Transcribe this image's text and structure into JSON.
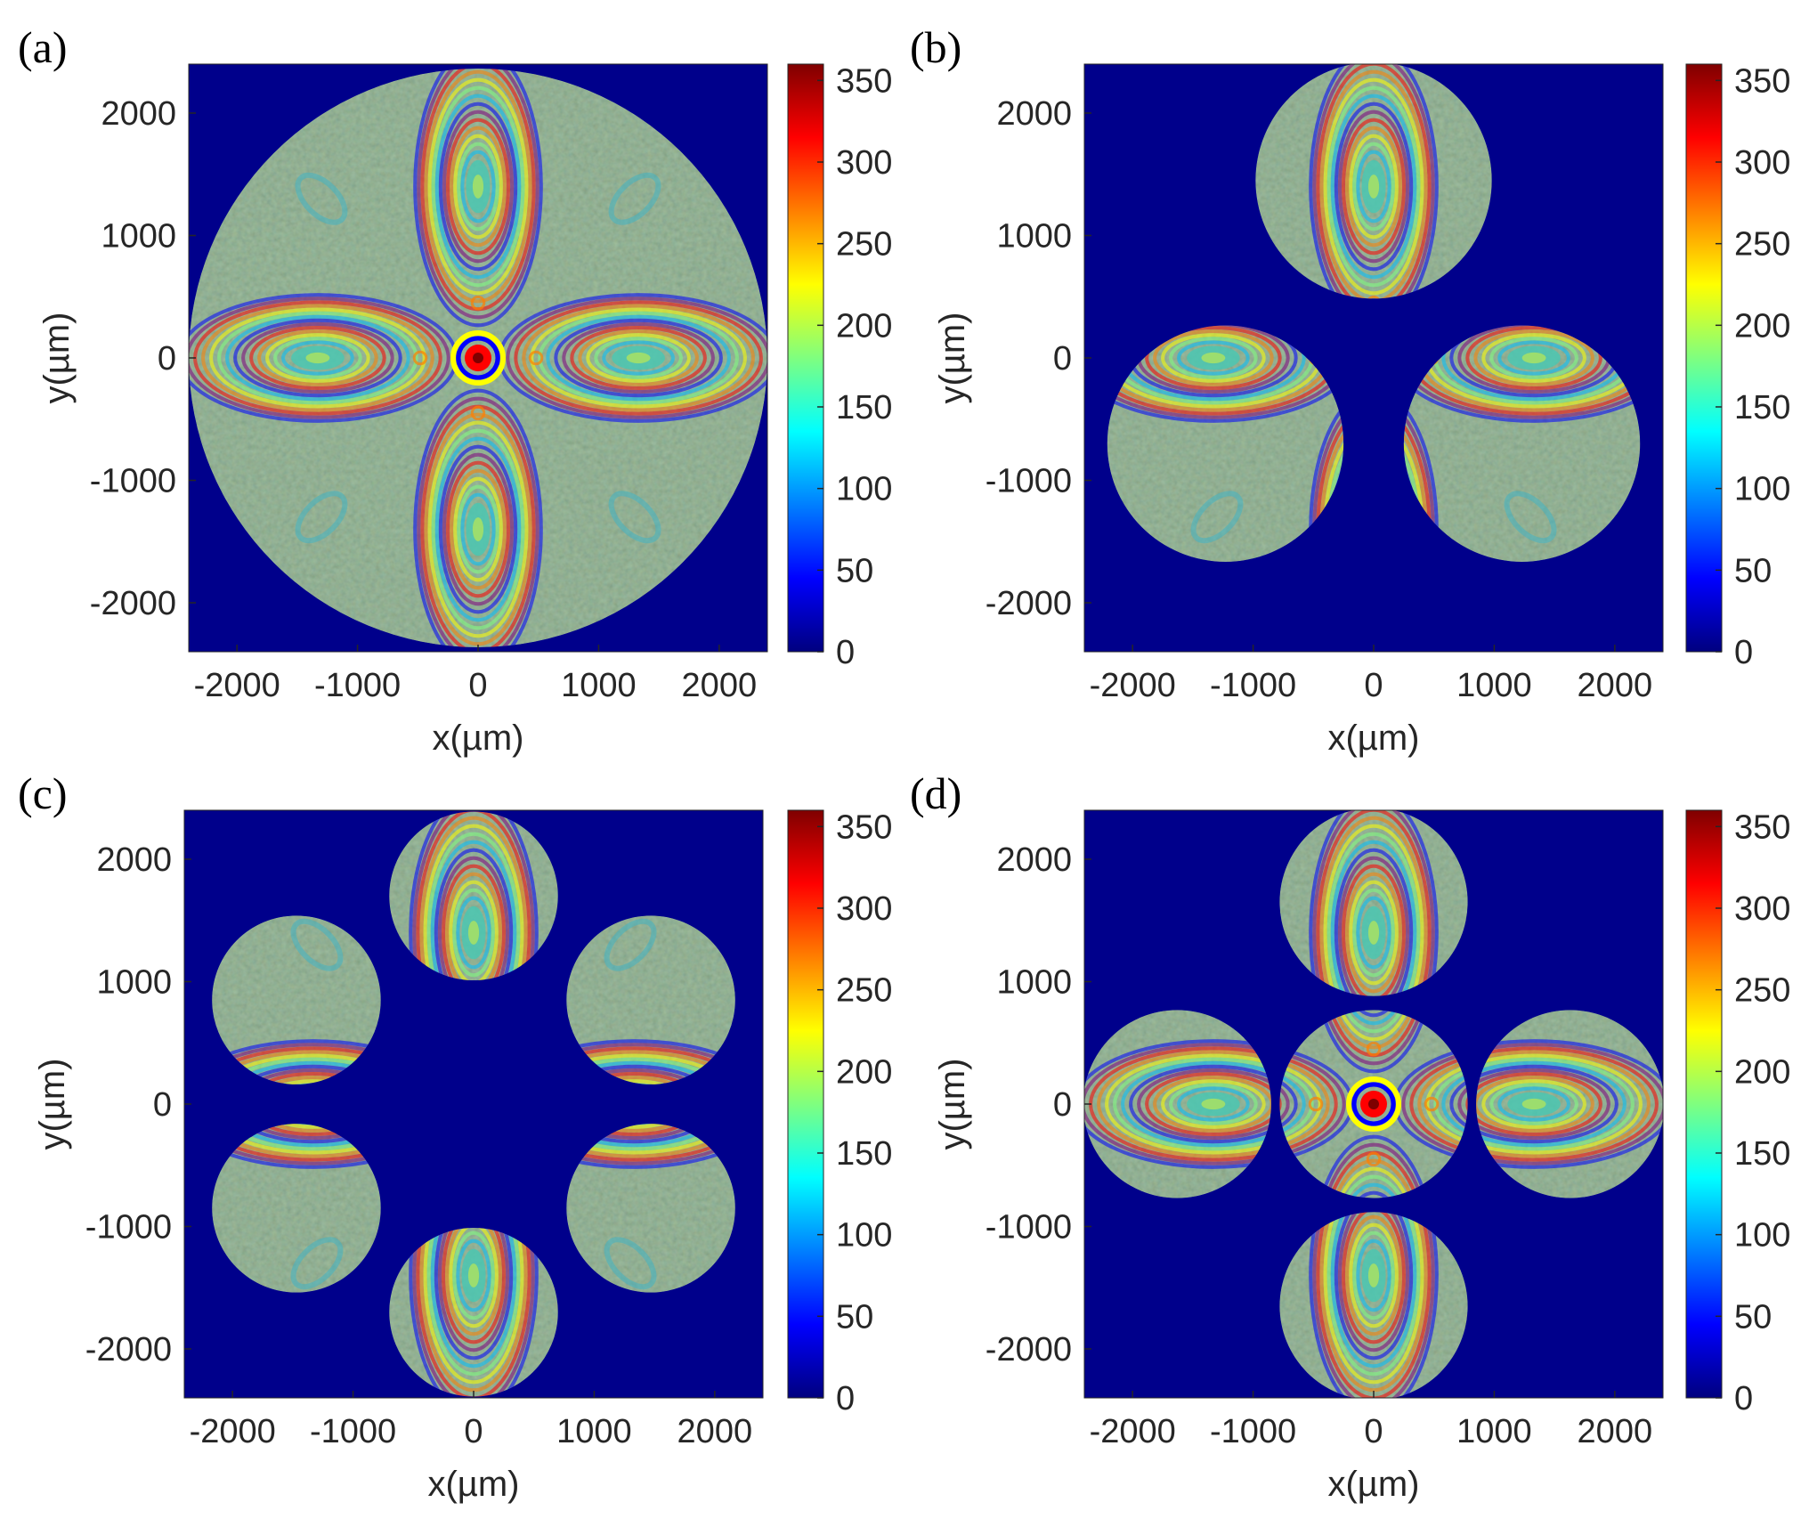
{
  "figure": {
    "colormap": "jet",
    "background_color": "#00008b",
    "colorbar_stops": [
      "#00007f",
      "#0000ff",
      "#007fff",
      "#00ffff",
      "#7fff7f",
      "#ffff00",
      "#ff7f00",
      "#ff0000",
      "#7f0000"
    ],
    "pattern_tint": "#7f9f7f"
  },
  "chart_data": [
    {
      "type": "heatmap",
      "panel_label": "(a)",
      "xlabel": "x(µm)",
      "ylabel": "y(µm)",
      "xlim": [
        -2400,
        2400
      ],
      "ylim": [
        -2400,
        2400
      ],
      "xticks": [
        -2000,
        -1000,
        0,
        1000,
        2000
      ],
      "yticks": [
        2000,
        1000,
        0,
        -1000,
        -2000
      ],
      "xtick_labels": [
        "-2000",
        "-1000",
        "0",
        "1000",
        "2000"
      ],
      "ytick_labels": [
        "2000",
        "1000",
        "0",
        "-1000",
        "-2000"
      ],
      "colorbar": {
        "min": 0,
        "max": 360,
        "ticks": [
          0,
          50,
          100,
          150,
          200,
          250,
          300,
          350
        ],
        "tick_labels": [
          "0",
          "50",
          "100",
          "150",
          "200",
          "250",
          "300",
          "350"
        ]
      },
      "apertures": [
        {
          "cx": 0,
          "cy": 0,
          "r": 2400
        }
      ],
      "central_peak": true
    },
    {
      "type": "heatmap",
      "panel_label": "(b)",
      "xlabel": "x(µm)",
      "ylabel": "y(µm)",
      "xlim": [
        -2400,
        2400
      ],
      "ylim": [
        -2400,
        2400
      ],
      "xticks": [
        -2000,
        -1000,
        0,
        1000,
        2000
      ],
      "yticks": [
        2000,
        1000,
        0,
        -1000,
        -2000
      ],
      "xtick_labels": [
        "-2000",
        "-1000",
        "0",
        "1000",
        "2000"
      ],
      "ytick_labels": [
        "2000",
        "1000",
        "0",
        "-1000",
        "-2000"
      ],
      "colorbar": {
        "min": 0,
        "max": 360,
        "ticks": [
          0,
          50,
          100,
          150,
          200,
          250,
          300,
          350
        ],
        "tick_labels": [
          "0",
          "50",
          "100",
          "150",
          "200",
          "250",
          "300",
          "350"
        ]
      },
      "apertures": [
        {
          "cx": 0,
          "cy": 1450,
          "r": 980
        },
        {
          "cx": -1230,
          "cy": -700,
          "r": 980
        },
        {
          "cx": 1230,
          "cy": -700,
          "r": 980
        }
      ],
      "central_peak": false
    },
    {
      "type": "heatmap",
      "panel_label": "(c)",
      "xlabel": "x(µm)",
      "ylabel": "y(µm)",
      "xlim": [
        -2400,
        2400
      ],
      "ylim": [
        -2400,
        2400
      ],
      "xticks": [
        -2000,
        -1000,
        0,
        1000,
        2000
      ],
      "yticks": [
        2000,
        1000,
        0,
        -1000,
        -2000
      ],
      "xtick_labels": [
        "-2000",
        "-1000",
        "0",
        "1000",
        "2000"
      ],
      "ytick_labels": [
        "2000",
        "1000",
        "0",
        "-1000",
        "-2000"
      ],
      "colorbar": {
        "min": 0,
        "max": 360,
        "ticks": [
          0,
          50,
          100,
          150,
          200,
          250,
          300,
          350
        ],
        "tick_labels": [
          "0",
          "50",
          "100",
          "150",
          "200",
          "250",
          "300",
          "350"
        ]
      },
      "apertures": [
        {
          "cx": 0,
          "cy": 1700,
          "r": 700
        },
        {
          "cx": -1470,
          "cy": 850,
          "r": 700
        },
        {
          "cx": 1470,
          "cy": 850,
          "r": 700
        },
        {
          "cx": -1470,
          "cy": -850,
          "r": 700
        },
        {
          "cx": 1470,
          "cy": -850,
          "r": 700
        },
        {
          "cx": 0,
          "cy": -1700,
          "r": 700
        }
      ],
      "central_peak": false
    },
    {
      "type": "heatmap",
      "panel_label": "(d)",
      "xlabel": "x(µm)",
      "ylabel": "y(µm)",
      "xlim": [
        -2400,
        2400
      ],
      "ylim": [
        -2400,
        2400
      ],
      "xticks": [
        -2000,
        -1000,
        0,
        1000,
        2000
      ],
      "yticks": [
        2000,
        1000,
        0,
        -1000,
        -2000
      ],
      "xtick_labels": [
        "-2000",
        "-1000",
        "0",
        "1000",
        "2000"
      ],
      "ytick_labels": [
        "2000",
        "1000",
        "0",
        "-1000",
        "-2000"
      ],
      "colorbar": {
        "min": 0,
        "max": 360,
        "ticks": [
          0,
          50,
          100,
          150,
          200,
          250,
          300,
          350
        ],
        "tick_labels": [
          "0",
          "50",
          "100",
          "150",
          "200",
          "250",
          "300",
          "350"
        ]
      },
      "apertures": [
        {
          "cx": 0,
          "cy": 0,
          "r": 780
        },
        {
          "cx": 0,
          "cy": 1650,
          "r": 780
        },
        {
          "cx": 0,
          "cy": -1650,
          "r": 780
        },
        {
          "cx": -1630,
          "cy": 0,
          "r": 780
        },
        {
          "cx": 1630,
          "cy": 0,
          "r": 780
        }
      ],
      "central_peak": true
    }
  ]
}
